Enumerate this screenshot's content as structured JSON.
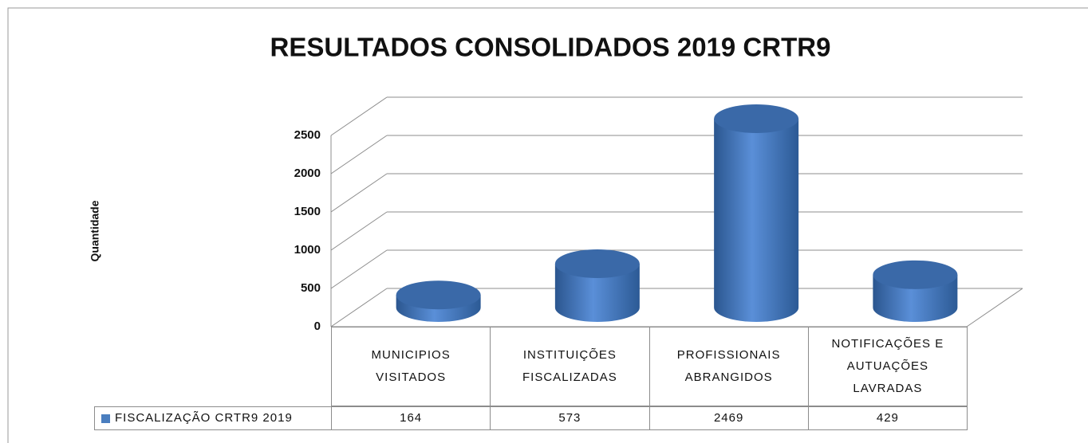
{
  "chart_data": {
    "type": "bar3d",
    "title": "RESULTADOS CONSOLIDADOS 2019 CRTR9",
    "y_label": "Quantidade",
    "categories": [
      "MUNICIPIOS VISITADOS",
      "INSTITUIÇÕES FISCALIZADAS",
      "PROFISSIONAIS ABRANGIDOS",
      "NOTIFICAÇÕES E AUTUAÇÕES LAVRADAS"
    ],
    "series": [
      {
        "name": "FISCALIZAÇÃO CRTR9 2019",
        "color": "#4a7ebf",
        "values": [
          164,
          573,
          2469,
          429
        ]
      }
    ],
    "ylim": [
      0,
      2500
    ],
    "yticks": [
      0,
      500,
      1000,
      1500,
      2000,
      2500
    ],
    "grid": true
  }
}
